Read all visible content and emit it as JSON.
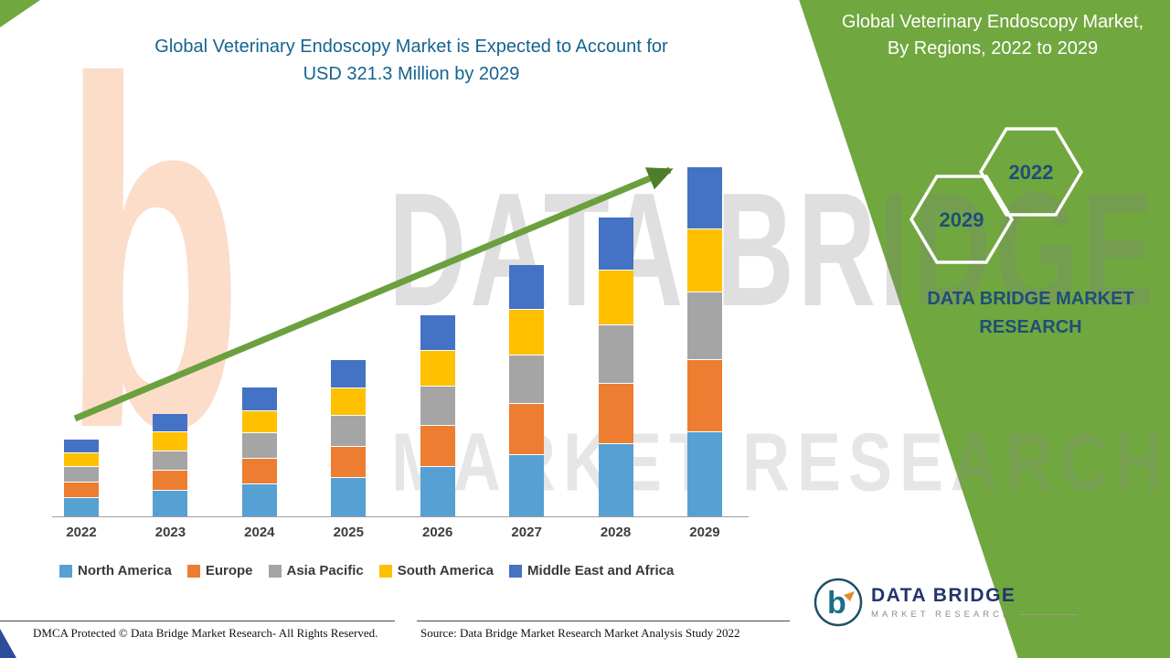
{
  "header": {
    "line1": "Global Veterinary Endoscopy Market is Expected to Account for",
    "line2": "USD 321.3 Million by 2029"
  },
  "side_panel": {
    "color": "#71a73f",
    "title_line1": "Global Veterinary Endoscopy Market,",
    "title_line2": "By Regions, 2022 to 2029",
    "hexagons": [
      {
        "label": "2029"
      },
      {
        "label": "2022"
      }
    ],
    "brand_line1": "DATA BRIDGE MARKET",
    "brand_line2": "RESEARCH"
  },
  "watermark": {
    "letter": "b",
    "line1": "DATA BRIDGE",
    "line2": "MARKET RESEARCH"
  },
  "chart_data": {
    "type": "bar",
    "stacked": true,
    "title": "Global Veterinary Endoscopy Market is Expected to Account for USD 321.3 Million by 2029",
    "unit": "USD Million",
    "categories": [
      "2022",
      "2023",
      "2024",
      "2025",
      "2026",
      "2027",
      "2028",
      "2029"
    ],
    "series": [
      {
        "name": "North America",
        "color": "#56a0d3",
        "values": [
          18,
          24,
          30,
          36,
          46,
          57,
          67,
          78.3
        ]
      },
      {
        "name": "Europe",
        "color": "#ed7d31",
        "values": [
          14,
          19,
          24,
          29,
          38,
          47,
          56,
          66
        ]
      },
      {
        "name": "Asia Pacific",
        "color": "#a5a5a5",
        "values": [
          14,
          18,
          23,
          28,
          36,
          45,
          54,
          63
        ]
      },
      {
        "name": "South America",
        "color": "#ffc000",
        "values": [
          13,
          17,
          21,
          26,
          33,
          42,
          50,
          58
        ]
      },
      {
        "name": "Middle East and Africa",
        "color": "#4472c4",
        "values": [
          12,
          16,
          21,
          25,
          32,
          40,
          48,
          56
        ]
      }
    ],
    "totals": [
      71,
      94,
      119,
      144,
      185,
      231,
      275,
      321.3
    ],
    "y_axis_visible": false,
    "grid": false,
    "legend_position": "bottom",
    "trend_arrow": true,
    "trend_arrow_color": "#6ba03e"
  },
  "footer": {
    "left": "DMCA Protected © Data Bridge Market Research- All Rights Reserved.",
    "right": "Source: Data Bridge Market Research Market Analysis Study 2022"
  },
  "logo": {
    "title": "DATA BRIDGE",
    "subtitle": "MARKET RESEARCH"
  }
}
